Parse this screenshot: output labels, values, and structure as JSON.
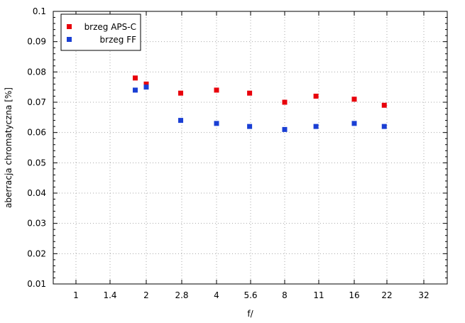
{
  "chart_data": {
    "type": "scatter",
    "xlabel": "f/",
    "ylabel": "aberracja chromatyczna [%]",
    "x_ticks": [
      "1",
      "1.4",
      "2",
      "2.8",
      "4",
      "5.6",
      "8",
      "11",
      "16",
      "22",
      "32"
    ],
    "y_ticks": [
      "0.01",
      "0.02",
      "0.03",
      "0.04",
      "0.05",
      "0.06",
      "0.07",
      "0.08",
      "0.09",
      "0.1"
    ],
    "ylim": [
      0.01,
      0.1
    ],
    "x_scale": "log2 (f-number stops)",
    "grid": true,
    "legend_position": "top-left",
    "series": [
      {
        "name": "brzeg APS-C",
        "color": "#e8000b",
        "points": [
          {
            "x": 1.8,
            "y": 0.078
          },
          {
            "x": 2.0,
            "y": 0.076
          },
          {
            "x": 2.8,
            "y": 0.073
          },
          {
            "x": 4.0,
            "y": 0.074
          },
          {
            "x": 5.6,
            "y": 0.073
          },
          {
            "x": 8.0,
            "y": 0.07
          },
          {
            "x": 11.0,
            "y": 0.072
          },
          {
            "x": 16.0,
            "y": 0.071
          },
          {
            "x": 22.0,
            "y": 0.069
          }
        ]
      },
      {
        "name": "brzeg FF",
        "color": "#1a3fd4",
        "points": [
          {
            "x": 1.8,
            "y": 0.074
          },
          {
            "x": 2.0,
            "y": 0.075
          },
          {
            "x": 2.8,
            "y": 0.064
          },
          {
            "x": 4.0,
            "y": 0.063
          },
          {
            "x": 5.6,
            "y": 0.062
          },
          {
            "x": 8.0,
            "y": 0.061
          },
          {
            "x": 11.0,
            "y": 0.062
          },
          {
            "x": 16.0,
            "y": 0.063
          },
          {
            "x": 22.0,
            "y": 0.062
          }
        ]
      }
    ]
  }
}
